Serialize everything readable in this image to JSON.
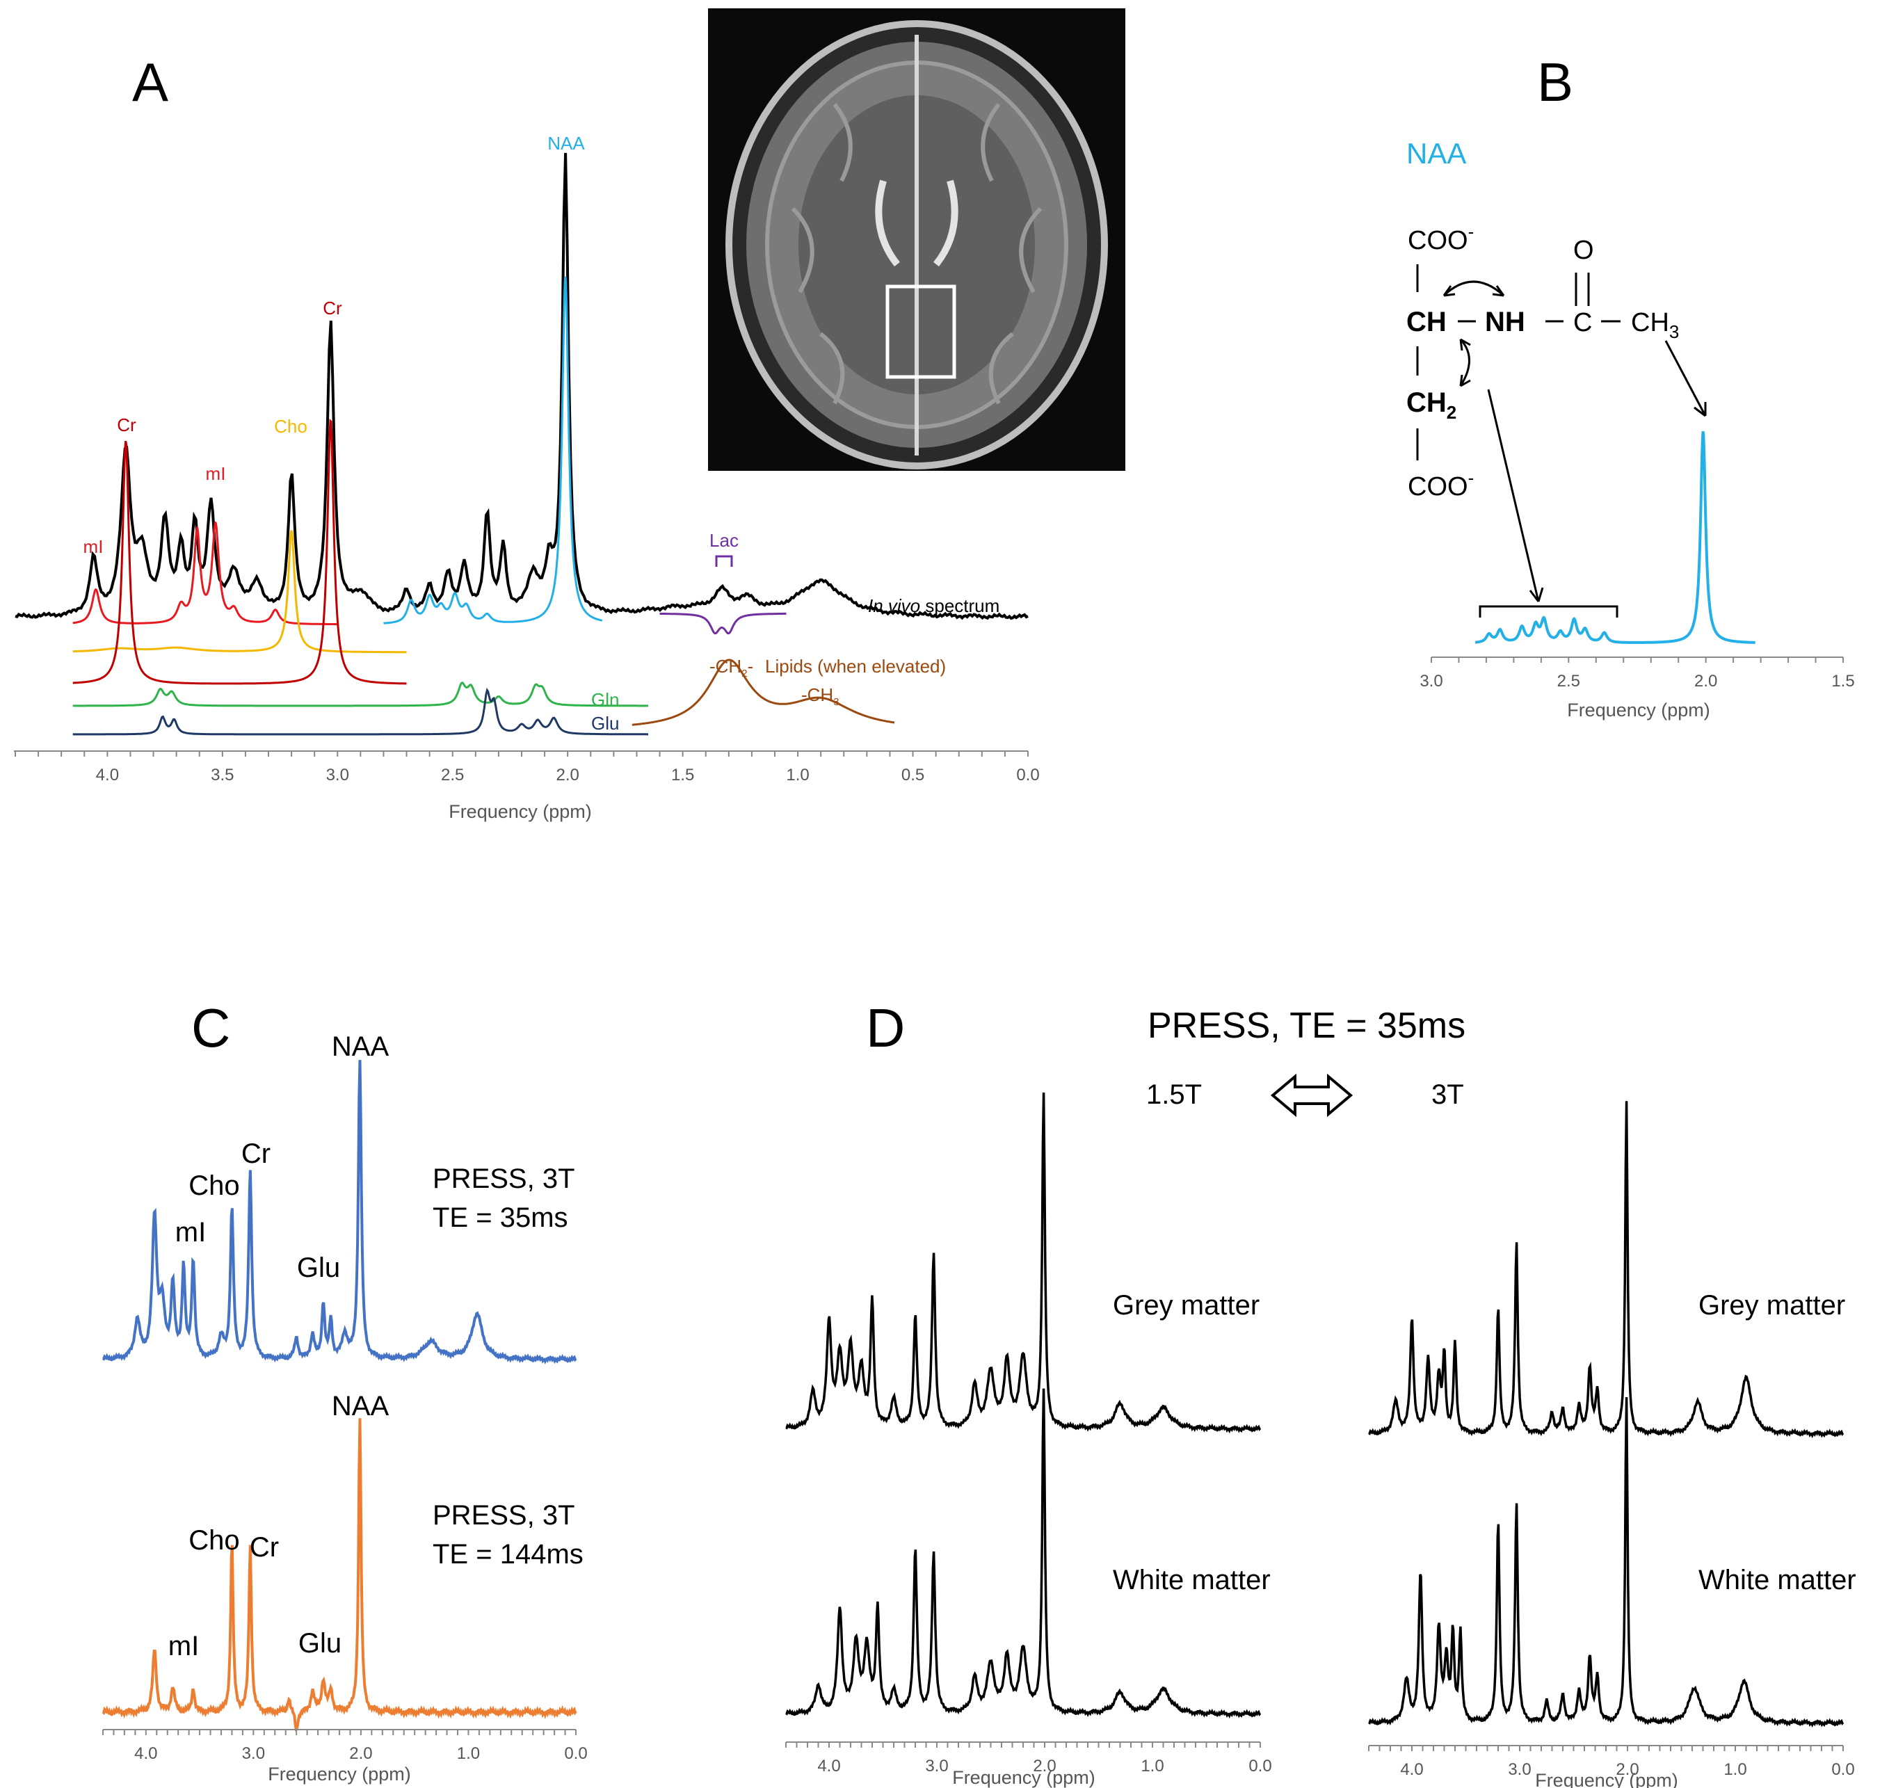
{
  "colors": {
    "black": "#000000",
    "red": "#e8191f",
    "darkred": "#c00000",
    "gold": "#f5b800",
    "cyan": "#22b0e6",
    "purple": "#7030a0",
    "green": "#2fb34a",
    "navy": "#1f3864",
    "brown": "#9a4a10",
    "blue": "#4472c4",
    "orange": "#ed7d31",
    "axis": "#888888"
  },
  "panelA": {
    "letter": "A",
    "xlabel": "Frequency (ppm)",
    "ticks": [
      "4.0",
      "3.5",
      "3.0",
      "2.5",
      "2.0",
      "1.5",
      "1.0",
      "0.5",
      "0.0"
    ],
    "labels": {
      "naa": "NAA",
      "cr1": "Cr",
      "cr2": "Cr",
      "cho": "Cho",
      "mi1": "mI",
      "mi2": "mI",
      "lac": "Lac",
      "invivo_italic": "In vivo",
      "invivo_rest": " spectrum",
      "gln": "Gln",
      "glu": "Glu",
      "lipids": "Lipids (when elevated)",
      "ch2_pre": "-CH",
      "ch2_sub": "2",
      "ch2_post": "-",
      "ch3_pre": "-CH",
      "ch3_sub": "3"
    }
  },
  "panelB": {
    "letter": "B",
    "title": "NAA",
    "xlabel": "Frequency (ppm)",
    "ticks": [
      "3.0",
      "2.5",
      "2.0",
      "1.5"
    ],
    "chem": {
      "coo_top": "COO",
      "minus": "-",
      "o": "O",
      "ch": "CH",
      "nh": "NH",
      "c": "C",
      "ch3": "CH",
      "sub3": "3",
      "ch2": "CH",
      "sub2": "2",
      "coo_bottom": "COO"
    }
  },
  "panelC": {
    "letter": "C",
    "xlabel": "Frequency (ppm)",
    "ticks": [
      "4.0",
      "3.0",
      "2.0",
      "1.0",
      "0.0"
    ],
    "top": {
      "seq": "PRESS, 3T",
      "te": "TE = 35ms",
      "naa": "NAA",
      "cr": "Cr",
      "cho": "Cho",
      "mi": "mI",
      "glu": "Glu"
    },
    "bottom": {
      "seq": "PRESS, 3T",
      "te": "TE = 144ms",
      "naa": "NAA",
      "cr": "Cr",
      "cho": "Cho",
      "mi": "mI",
      "glu": "Glu"
    }
  },
  "panelD": {
    "letter": "D",
    "title": "PRESS, TE = 35ms",
    "left_field": "1.5T",
    "right_field": "3T",
    "xlabel": "Frequency (ppm)",
    "ticks": [
      "4.0",
      "3.0",
      "2.0",
      "1.0",
      "0.0"
    ],
    "grey": "Grey matter",
    "white": "White matter"
  },
  "chart_data": [
    {
      "type": "line",
      "title": "A",
      "xlabel": "Frequency (ppm)",
      "xlim": [
        4.4,
        0.0
      ],
      "series": [
        {
          "name": "In vivo spectrum",
          "peaks_ppm": [
            2.01,
            3.03,
            3.92,
            3.2,
            3.55,
            3.75,
            3.62,
            4.06,
            2.35,
            2.28,
            2.45,
            2.6,
            1.33,
            1.28,
            0.9
          ]
        },
        {
          "name": "NAA",
          "peaks_ppm": [
            2.01,
            2.5,
            2.6,
            2.7
          ]
        },
        {
          "name": "Cr",
          "peaks_ppm": [
            3.03,
            3.92
          ]
        },
        {
          "name": "Cho",
          "peaks_ppm": [
            3.2
          ]
        },
        {
          "name": "mI",
          "peaks_ppm": [
            3.52,
            3.61,
            4.05
          ]
        },
        {
          "name": "Lac",
          "peaks_ppm": [
            1.33
          ]
        },
        {
          "name": "Gln",
          "peaks_ppm": [
            3.76,
            2.45,
            2.14
          ]
        },
        {
          "name": "Glu",
          "peaks_ppm": [
            3.75,
            2.35,
            2.08
          ]
        },
        {
          "name": "Lipids (when elevated)",
          "peaks_ppm": [
            1.3,
            0.9
          ]
        }
      ]
    },
    {
      "type": "line",
      "title": "B",
      "xlabel": "Frequency (ppm)",
      "xlim": [
        3.0,
        1.5
      ],
      "series": [
        {
          "name": "NAA",
          "peaks_ppm": [
            2.01,
            2.48,
            2.59,
            2.67,
            2.75
          ]
        }
      ]
    },
    {
      "type": "line",
      "title": "C",
      "xlabel": "Frequency (ppm)",
      "xlim": [
        4.4,
        0.0
      ],
      "series": [
        {
          "name": "PRESS, 3T TE = 35ms",
          "peaks_ppm": [
            2.01,
            3.03,
            3.2,
            3.92,
            3.56,
            3.65,
            2.35
          ]
        },
        {
          "name": "PRESS, 3T TE = 144ms",
          "peaks_ppm": [
            2.01,
            3.03,
            3.22,
            3.92
          ]
        }
      ]
    },
    {
      "type": "line",
      "title": "D",
      "xlabel": "Frequency (ppm)",
      "xlim": [
        4.4,
        0.0
      ],
      "series": [
        {
          "name": "1.5T Grey matter",
          "peaks_ppm": [
            2.01,
            3.03,
            3.2,
            3.6,
            4.0
          ]
        },
        {
          "name": "1.5T White matter",
          "peaks_ppm": [
            2.01,
            3.03,
            3.2,
            3.55,
            3.9
          ]
        },
        {
          "name": "3T Grey matter",
          "peaks_ppm": [
            2.01,
            3.03,
            3.2,
            3.6,
            4.0
          ]
        },
        {
          "name": "3T White matter",
          "peaks_ppm": [
            2.01,
            3.03,
            3.2,
            3.6,
            3.92
          ]
        }
      ]
    }
  ]
}
